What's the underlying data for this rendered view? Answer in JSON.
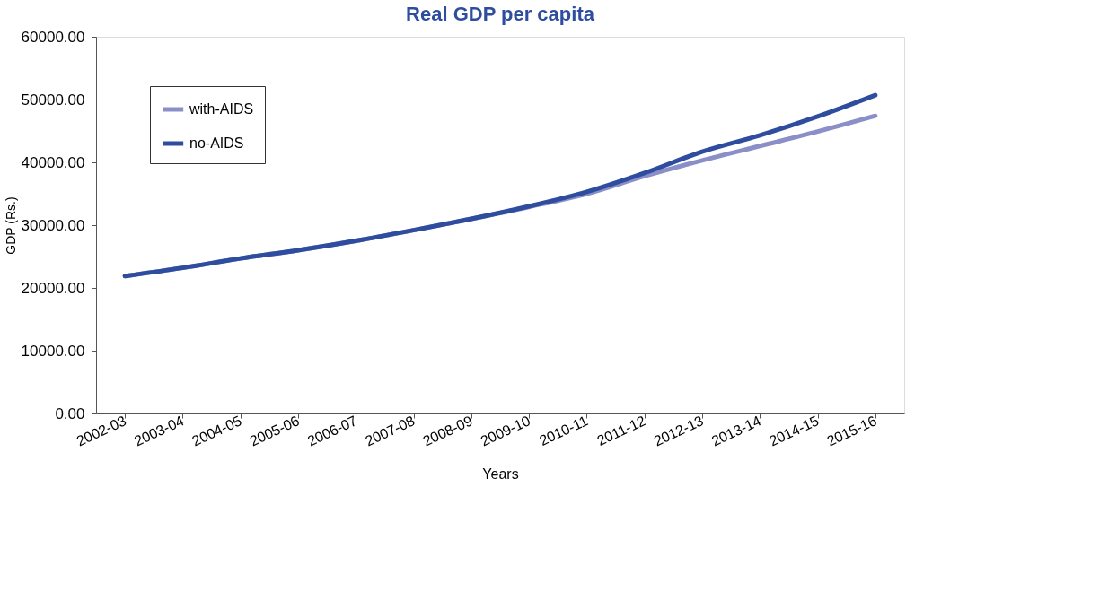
{
  "chart_data": {
    "type": "line",
    "title": "Real GDP per capita",
    "xlabel": "Years",
    "ylabel": "GDP (Rs.)",
    "categories": [
      "2002-03",
      "2003-04",
      "2004-05",
      "2005-06",
      "2006-07",
      "2007-08",
      "2008-09",
      "2009-10",
      "2010-11",
      "2011-12",
      "2012-13",
      "2013-14",
      "2014-15",
      "2015-16"
    ],
    "series": [
      {
        "name": "with-AIDS",
        "color": "#8b8fc8",
        "values": [
          21900,
          23200,
          24700,
          26000,
          27500,
          29200,
          31000,
          32900,
          35000,
          37800,
          40300,
          42600,
          44900,
          47400
        ]
      },
      {
        "name": "no-AIDS",
        "color": "#2e4d9f",
        "values": [
          21900,
          23200,
          24700,
          26000,
          27500,
          29200,
          31000,
          33000,
          35300,
          38300,
          41700,
          44300,
          47300,
          50700
        ]
      }
    ],
    "ylim": [
      0,
      60000
    ],
    "yticks": [
      {
        "value": 0,
        "label": "0.00"
      },
      {
        "value": 10000,
        "label": "10000.00"
      },
      {
        "value": 20000,
        "label": "20000.00"
      },
      {
        "value": 30000,
        "label": "30000.00"
      },
      {
        "value": 40000,
        "label": "40000.00"
      },
      {
        "value": 50000,
        "label": "50000.00"
      },
      {
        "value": 60000,
        "label": "60000.00"
      }
    ],
    "grid": false,
    "legend": "top left",
    "marker": "none",
    "line_style": "solid"
  }
}
